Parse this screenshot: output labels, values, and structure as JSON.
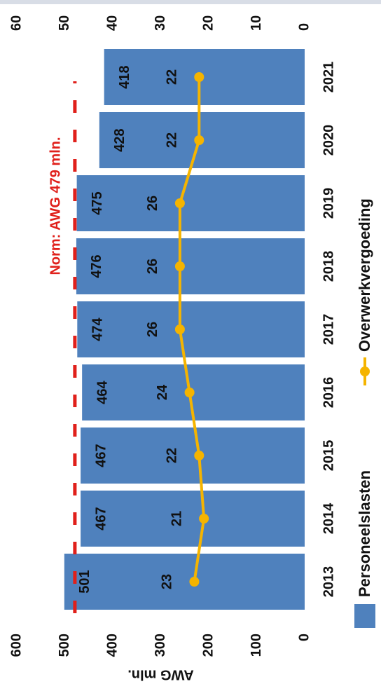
{
  "chart_data": {
    "type": "bar",
    "categories": [
      "2013",
      "2014",
      "2015",
      "2016",
      "2017",
      "2018",
      "2019",
      "2020",
      "2021"
    ],
    "series": [
      {
        "name": "Personeelslasten",
        "type": "bar",
        "color": "#4f81bd",
        "values": [
          501,
          467,
          467,
          464,
          474,
          476,
          475,
          428,
          418
        ]
      },
      {
        "name": "Overwerkvergoeding",
        "type": "line",
        "axis": "y2",
        "color": "#f5b400",
        "values": [
          23,
          21,
          22,
          24,
          26,
          26,
          26,
          22,
          22
        ]
      }
    ],
    "ylabel": "AWG mln.",
    "ylim": [
      0,
      600
    ],
    "yticks": [
      0,
      100,
      200,
      300,
      400,
      500,
      600
    ],
    "y2lim": [
      0,
      60
    ],
    "y2ticks": [
      0,
      10,
      20,
      30,
      40,
      50,
      60
    ],
    "reference_line": {
      "value": 479,
      "label": "Norm: AWG 479 mln.",
      "color": "#e0201b"
    },
    "grid": false
  }
}
